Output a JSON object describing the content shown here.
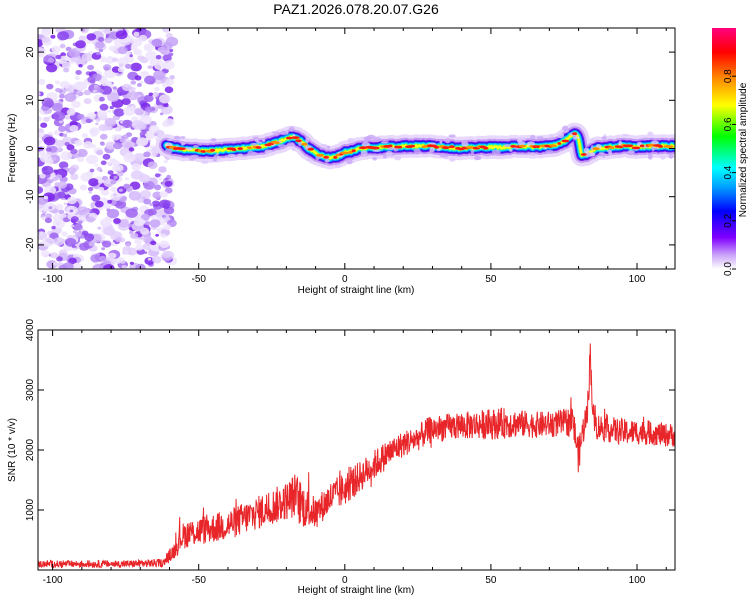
{
  "title": "PAZ1.2026.078.20.07.G26",
  "chart_data": [
    {
      "type": "heatmap",
      "xlabel": "Height of straight line (km)",
      "ylabel": "Frequency (Hz)",
      "xlim": [
        -105,
        113
      ],
      "ylim": [
        -25,
        25
      ],
      "xticks": [
        -100,
        -50,
        0,
        50,
        100
      ],
      "yticks": [
        -20,
        -10,
        0,
        10,
        20
      ],
      "noise_region_x": [
        -105,
        -61
      ],
      "ridge": {
        "x": [
          -61,
          -55,
          -45,
          -35,
          -28,
          -22,
          -18,
          -15,
          -12,
          -8,
          -5,
          -2,
          0,
          3,
          5,
          10,
          20,
          30,
          40,
          50,
          55,
          60,
          65,
          70,
          74,
          77,
          79,
          80,
          81,
          83,
          86,
          90,
          95,
          100,
          105,
          110,
          113
        ],
        "freq": [
          0.5,
          -0.3,
          -0.5,
          0,
          0.5,
          1.5,
          2.5,
          1.5,
          -0.2,
          -1.5,
          -2,
          -1.5,
          -0.8,
          -0.5,
          0,
          0.2,
          0.5,
          0.5,
          0,
          0.3,
          0.2,
          0.5,
          0.3,
          0.5,
          1,
          2.5,
          3,
          2,
          -1.5,
          -1,
          0,
          0.2,
          0.5,
          0.3,
          0.5,
          0.5,
          0.5
        ]
      },
      "colorbar": {
        "label": "Normalized spectral amplitude",
        "range": [
          0,
          1
        ],
        "ticks": [
          0.0,
          0.2,
          0.4,
          0.6,
          0.8
        ],
        "tick_labels": [
          "0.0",
          "0.2",
          "0.4",
          "0.6",
          "0.8"
        ],
        "colors": [
          "#ffffff",
          "#c8a0f8",
          "#8000ff",
          "#0000ff",
          "#00a0ff",
          "#00ffff",
          "#00ff00",
          "#ffff00",
          "#ff8000",
          "#ff0000",
          "#ff0080"
        ]
      }
    },
    {
      "type": "line",
      "xlabel": "Height of straight line (km)",
      "ylabel": "SNR (10 * v/v)",
      "xlim": [
        -105,
        113
      ],
      "ylim": [
        0,
        4000
      ],
      "xticks": [
        -100,
        -50,
        0,
        50,
        100
      ],
      "yticks": [
        1000,
        2000,
        3000,
        4000
      ],
      "color": "#e8262a",
      "series": [
        {
          "name": "SNR",
          "x": [
            -105,
            -90,
            -75,
            -62,
            -58,
            -56,
            -54,
            -50,
            -45,
            -40,
            -35,
            -30,
            -25,
            -20,
            -17,
            -15,
            -12,
            -10,
            -8,
            -5,
            0,
            5,
            10,
            15,
            20,
            25,
            28,
            30,
            35,
            40,
            45,
            50,
            55,
            60,
            65,
            70,
            75,
            78,
            80,
            82,
            83,
            84,
            85,
            86,
            90,
            95,
            100,
            105,
            110,
            113
          ],
          "y": [
            100,
            100,
            100,
            120,
            350,
            550,
            600,
            650,
            700,
            750,
            850,
            950,
            1050,
            1150,
            1250,
            1100,
            1000,
            950,
            1050,
            1200,
            1350,
            1550,
            1750,
            1950,
            2100,
            2200,
            2300,
            2350,
            2380,
            2400,
            2420,
            2430,
            2450,
            2440,
            2420,
            2430,
            2450,
            2500,
            1900,
            2450,
            2600,
            3600,
            2550,
            2400,
            2350,
            2300,
            2300,
            2280,
            2250,
            2250
          ],
          "amp": [
            60,
            60,
            60,
            70,
            150,
            220,
            230,
            240,
            250,
            260,
            270,
            280,
            300,
            320,
            380,
            400,
            300,
            260,
            260,
            280,
            280,
            260,
            250,
            240,
            220,
            220,
            230,
            230,
            220,
            230,
            240,
            260,
            260,
            230,
            220,
            220,
            230,
            260,
            300,
            260,
            250,
            300,
            250,
            230,
            220,
            220,
            210,
            200,
            200,
            200
          ]
        }
      ]
    }
  ]
}
